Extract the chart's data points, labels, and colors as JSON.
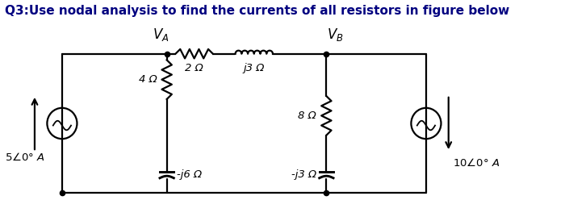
{
  "title": "Q3:Use nodal analysis to find the currents of all resistors in figure below",
  "title_fontsize": 11,
  "title_color": "#000080",
  "bg_color": "#ffffff",
  "figsize": [
    7.05,
    2.74
  ],
  "dpi": 100,
  "xlim": [
    0,
    10
  ],
  "ylim": [
    0,
    4.2
  ],
  "ybot": 0.5,
  "ytop": 3.2,
  "xleft": 1.2,
  "xVA": 3.3,
  "xVB": 6.5,
  "xright": 8.5,
  "label_VA": "$V_A$",
  "label_VB": "$V_B$",
  "label_4ohm": "4 Ω",
  "label_2ohm": "2 Ω",
  "label_j3ohm": "j3 Ω",
  "label_8ohm": "8 Ω",
  "label_j6ohm": "-j6 Ω",
  "label_j3ohm2": "-j3 Ω",
  "label_Is1": "5∠$0°$ A",
  "label_Is2": "10∠$0°$ A"
}
